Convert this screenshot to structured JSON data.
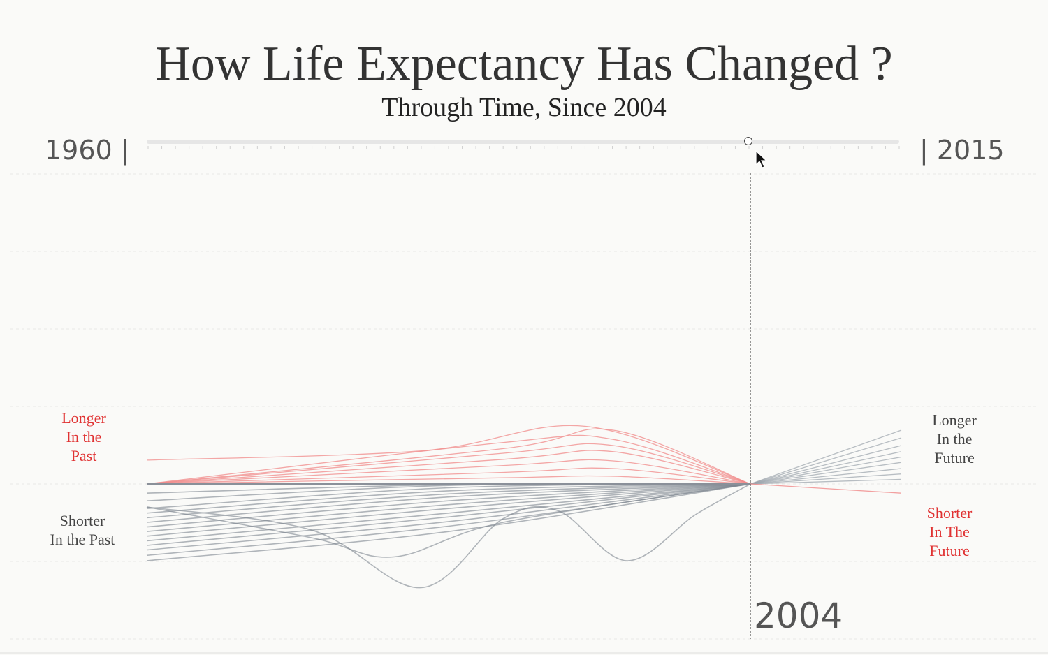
{
  "title": "How Life Expectancy Has Changed ?",
  "subtitle": "Through Time, Since 2004",
  "slider": {
    "start_label": "1960 |",
    "end_label": "| 2015",
    "min": 1960,
    "max": 2015,
    "value": 2004
  },
  "current_year_label": "2004",
  "labels": {
    "longer_past": [
      "Longer",
      "In the",
      "Past"
    ],
    "shorter_past": [
      "Shorter",
      "In the Past"
    ],
    "longer_future": [
      "Longer",
      "In the",
      "Future"
    ],
    "shorter_future": [
      "Shorter",
      "In The",
      "Future"
    ]
  },
  "colors": {
    "longer_past": "#e03232",
    "past_lines_red": "#f08a8a",
    "gray_lines": "#7d8690",
    "future_lines": "#9aa2ab",
    "text_gray": "#444444"
  },
  "chart_data": {
    "type": "line",
    "x_range": [
      1960,
      2015
    ],
    "reference_year": 2004,
    "series": [
      {
        "color": "red",
        "values": [
          [
            1960,
            0.31
          ],
          [
            1980,
            0.43
          ],
          [
            1992,
            0.75
          ],
          [
            2004,
            0
          ]
        ]
      },
      {
        "color": "red",
        "values": [
          [
            1960,
            0
          ],
          [
            1986,
            0.46
          ],
          [
            1994,
            0.7
          ],
          [
            2004,
            0
          ]
        ]
      },
      {
        "color": "red",
        "values": [
          [
            1960,
            0
          ],
          [
            1986,
            0.54
          ],
          [
            1994,
            0.58
          ],
          [
            2004,
            0
          ]
        ]
      },
      {
        "color": "red",
        "values": [
          [
            1960,
            0
          ],
          [
            1986,
            0.4
          ],
          [
            1994,
            0.5
          ],
          [
            2004,
            0
          ]
        ]
      },
      {
        "color": "red",
        "values": [
          [
            1960,
            0
          ],
          [
            1986,
            0.32
          ],
          [
            1994,
            0.42
          ],
          [
            2004,
            0
          ]
        ]
      },
      {
        "color": "red",
        "values": [
          [
            1960,
            0
          ],
          [
            1986,
            0.24
          ],
          [
            1994,
            0.3
          ],
          [
            2004,
            0
          ]
        ]
      },
      {
        "color": "red",
        "values": [
          [
            1960,
            0
          ],
          [
            1986,
            0.15
          ],
          [
            1994,
            0.2
          ],
          [
            2004,
            0
          ]
        ]
      },
      {
        "color": "red",
        "values": [
          [
            1960,
            0
          ],
          [
            1986,
            0.08
          ],
          [
            1994,
            0.1
          ],
          [
            2004,
            0
          ]
        ]
      },
      {
        "color": "gray",
        "values": [
          [
            1960,
            -1.0
          ],
          [
            1982,
            -0.62
          ],
          [
            2004,
            0
          ]
        ]
      },
      {
        "color": "gray",
        "values": [
          [
            1960,
            -0.93
          ],
          [
            1982,
            -0.55
          ],
          [
            2004,
            0
          ]
        ]
      },
      {
        "color": "gray",
        "values": [
          [
            1960,
            -0.86
          ],
          [
            1982,
            -0.49
          ],
          [
            2004,
            0
          ]
        ]
      },
      {
        "color": "gray",
        "values": [
          [
            1960,
            -0.8
          ],
          [
            1982,
            -0.43
          ],
          [
            2004,
            0
          ]
        ]
      },
      {
        "color": "gray",
        "values": [
          [
            1960,
            -0.74
          ],
          [
            1982,
            -0.38
          ],
          [
            2004,
            0
          ]
        ]
      },
      {
        "color": "gray",
        "values": [
          [
            1960,
            -0.68
          ],
          [
            1982,
            -0.32
          ],
          [
            2004,
            0
          ]
        ]
      },
      {
        "color": "gray",
        "values": [
          [
            1960,
            -0.62
          ],
          [
            1982,
            -0.27
          ],
          [
            2004,
            0
          ]
        ]
      },
      {
        "color": "gray",
        "values": [
          [
            1960,
            -0.56
          ],
          [
            1982,
            -0.22
          ],
          [
            2004,
            0
          ]
        ]
      },
      {
        "color": "gray",
        "values": [
          [
            1960,
            -0.5
          ],
          [
            1982,
            -0.17
          ],
          [
            2004,
            0
          ]
        ]
      },
      {
        "color": "gray",
        "values": [
          [
            1960,
            -0.44
          ],
          [
            1982,
            -0.13
          ],
          [
            2004,
            0
          ]
        ]
      },
      {
        "color": "gray",
        "values": [
          [
            1960,
            -0.38
          ],
          [
            1982,
            -0.09
          ],
          [
            2004,
            0
          ]
        ]
      },
      {
        "color": "gray",
        "values": [
          [
            1960,
            -0.32
          ],
          [
            1982,
            -0.05
          ],
          [
            2004,
            0
          ]
        ]
      },
      {
        "color": "gray",
        "values": [
          [
            1960,
            -0.22
          ],
          [
            1982,
            -0.02
          ],
          [
            2004,
            0
          ]
        ]
      },
      {
        "color": "gray",
        "values": [
          [
            1960,
            -0.12
          ],
          [
            1982,
            -0.01
          ],
          [
            2004,
            0
          ]
        ]
      },
      {
        "color": "gray",
        "values": [
          [
            1960,
            -0.3
          ],
          [
            1972,
            -0.6
          ],
          [
            1980,
            -1.35
          ],
          [
            1986,
            -0.45
          ],
          [
            1990,
            -0.35
          ],
          [
            1995,
            -1.0
          ],
          [
            2000,
            -0.4
          ],
          [
            2004,
            0
          ]
        ]
      },
      {
        "color": "gray",
        "values": [
          [
            1960,
            -0.3
          ],
          [
            1972,
            -0.7
          ],
          [
            1978,
            -0.95
          ],
          [
            1986,
            -0.5
          ],
          [
            2004,
            0
          ]
        ]
      },
      {
        "color": "future",
        "values": [
          [
            2004,
            0
          ],
          [
            2015,
            0.7
          ]
        ]
      },
      {
        "color": "future",
        "values": [
          [
            2004,
            0
          ],
          [
            2015,
            0.6
          ]
        ]
      },
      {
        "color": "future",
        "values": [
          [
            2004,
            0
          ],
          [
            2015,
            0.5
          ]
        ]
      },
      {
        "color": "future",
        "values": [
          [
            2004,
            0
          ],
          [
            2015,
            0.42
          ]
        ]
      },
      {
        "color": "future",
        "values": [
          [
            2004,
            0
          ],
          [
            2015,
            0.35
          ]
        ]
      },
      {
        "color": "future",
        "values": [
          [
            2004,
            0
          ],
          [
            2015,
            0.28
          ]
        ]
      },
      {
        "color": "future",
        "values": [
          [
            2004,
            0
          ],
          [
            2015,
            0.2
          ]
        ]
      },
      {
        "color": "future",
        "values": [
          [
            2004,
            0
          ],
          [
            2015,
            0.13
          ]
        ]
      },
      {
        "color": "future",
        "values": [
          [
            2004,
            0
          ],
          [
            2015,
            0.06
          ]
        ]
      },
      {
        "color": "future-red",
        "values": [
          [
            2004,
            0
          ],
          [
            2015,
            -0.12
          ]
        ]
      }
    ]
  }
}
